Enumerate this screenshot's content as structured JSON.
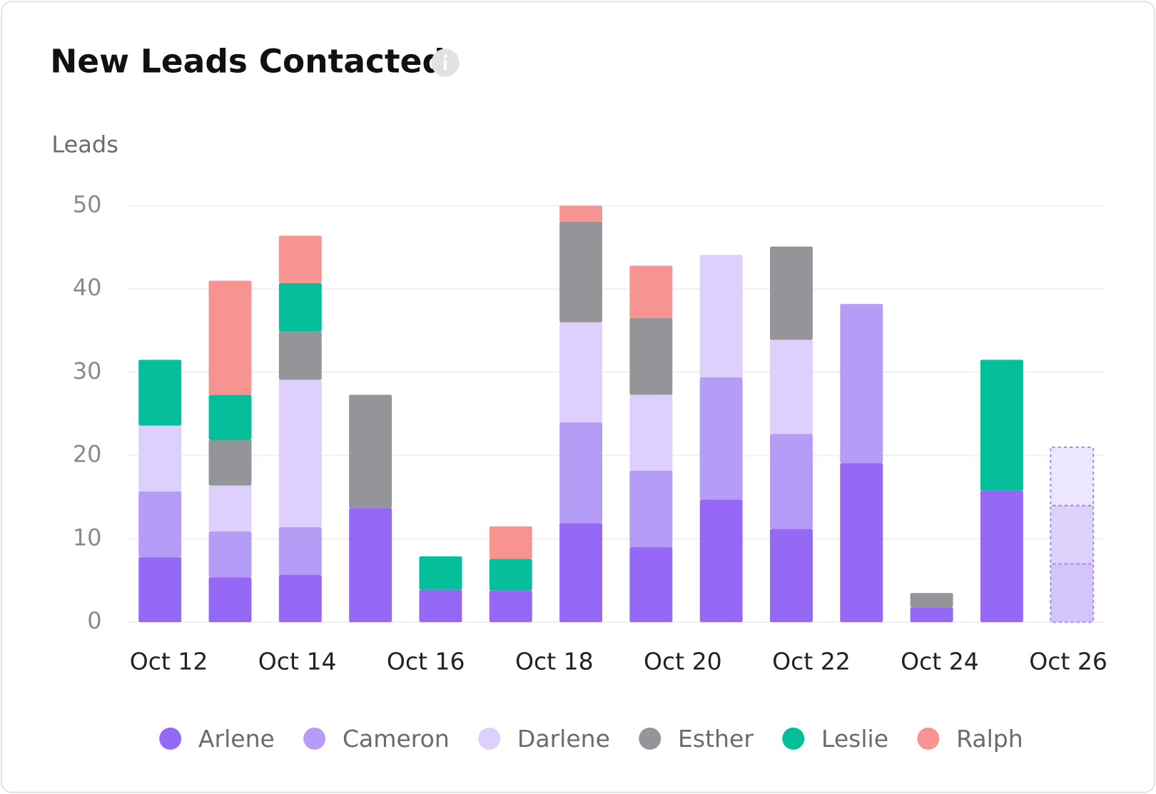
{
  "chart_data": {
    "type": "stacked_bar",
    "title": "New Leads Contacted",
    "y_axis_label": "Leads",
    "ylim": [
      0,
      50
    ],
    "yticks": [
      0,
      10,
      20,
      30,
      40,
      50
    ],
    "grid": true,
    "x_tick_labels": [
      "Oct 12",
      "Oct 14",
      "Oct 16",
      "Oct 18",
      "Oct 20",
      "Oct 22",
      "Oct 24",
      "Oct 26"
    ],
    "projected": [
      false,
      false,
      false,
      false,
      false,
      false,
      false,
      false,
      false,
      false,
      false,
      false,
      false,
      true
    ],
    "legend": "bottom",
    "series": [
      {
        "name": "Arlene",
        "color": "#9569f5",
        "projected_color": "#d3c4fa",
        "values": [
          7.8,
          5.4,
          5.7,
          13.7,
          3.9,
          3.8,
          11.9,
          9.0,
          14.7,
          11.2,
          19.1,
          1.8,
          15.8,
          7.0
        ]
      },
      {
        "name": "Cameron",
        "color": "#b59cf7",
        "projected_color": "#ddd2fb",
        "values": [
          7.9,
          5.5,
          5.7,
          null,
          null,
          null,
          12.1,
          9.2,
          14.7,
          11.4,
          19.1,
          null,
          null,
          7.0
        ]
      },
      {
        "name": "Darlene",
        "color": "#ddd0fc",
        "projected_color": "#ede7fd",
        "values": [
          7.9,
          5.5,
          17.7,
          null,
          null,
          null,
          12.0,
          9.1,
          14.7,
          11.3,
          null,
          null,
          null,
          7.0
        ]
      },
      {
        "name": "Esther",
        "color": "#939598",
        "values": [
          null,
          5.5,
          5.8,
          13.6,
          null,
          null,
          12.1,
          9.2,
          null,
          11.2,
          null,
          1.7,
          null,
          null
        ]
      },
      {
        "name": "Leslie",
        "color": "#05bf9b",
        "values": [
          7.9,
          5.4,
          5.8,
          null,
          4.0,
          3.8,
          null,
          null,
          null,
          null,
          null,
          null,
          15.7,
          null
        ]
      },
      {
        "name": "Ralph",
        "color": "#f79491",
        "values": [
          null,
          13.7,
          5.7,
          null,
          null,
          3.9,
          1.9,
          6.3,
          null,
          null,
          null,
          null,
          null,
          null
        ]
      }
    ]
  }
}
